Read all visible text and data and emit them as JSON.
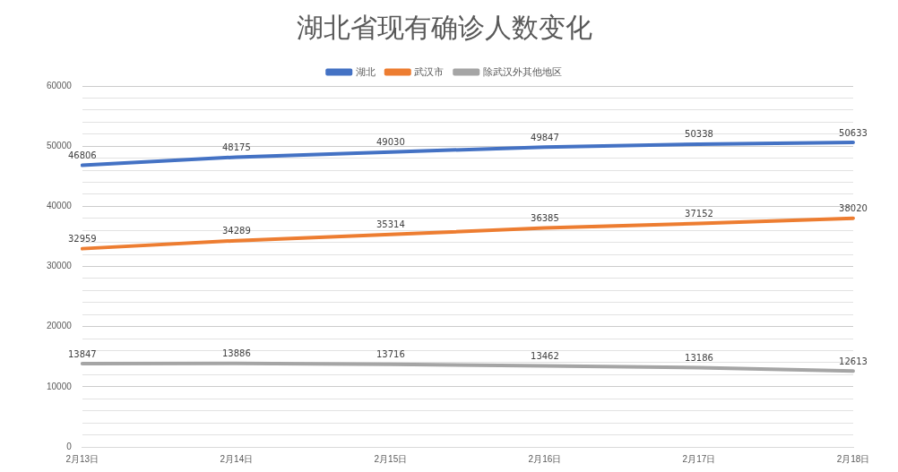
{
  "chart_data": {
    "type": "line",
    "title": "湖北省现有确诊人数变化",
    "categories": [
      "2月13日",
      "2月14日",
      "2月15日",
      "2月16日",
      "2月17日",
      "2月18日"
    ],
    "series": [
      {
        "name": "湖北",
        "color": "#4472c4",
        "values": [
          46806,
          48175,
          49030,
          49847,
          50338,
          50633
        ]
      },
      {
        "name": "武汉市",
        "color": "#ed7d31",
        "values": [
          32959,
          34289,
          35314,
          36385,
          37152,
          38020
        ]
      },
      {
        "name": "除武汉外其他地区",
        "color": "#a5a5a5",
        "values": [
          13847,
          13886,
          13716,
          13462,
          13186,
          12613
        ]
      }
    ],
    "ylim": [
      0,
      60000
    ],
    "yticks": [
      0,
      {
        "value": 2000,
        "label": null
      },
      {
        "value": 4000,
        "label": null
      },
      {
        "value": 6000,
        "label": null
      },
      {
        "value": 8000,
        "label": null
      },
      10000,
      {
        "value": 12000,
        "label": null
      },
      {
        "value": 14000,
        "label": null
      },
      {
        "value": 16000,
        "label": null
      },
      {
        "value": 18000,
        "label": null
      },
      20000,
      {
        "value": 22000,
        "label": null
      },
      {
        "value": 24000,
        "label": null
      },
      {
        "value": 26000,
        "label": null
      },
      {
        "value": 28000,
        "label": null
      },
      30000,
      {
        "value": 32000,
        "label": null
      },
      {
        "value": 34000,
        "label": null
      },
      {
        "value": 36000,
        "label": null
      },
      {
        "value": 38000,
        "label": null
      },
      40000,
      {
        "value": 42000,
        "label": null
      },
      {
        "value": 44000,
        "label": null
      },
      {
        "value": 46000,
        "label": null
      },
      {
        "value": 48000,
        "label": null
      },
      50000,
      {
        "value": 52000,
        "label": null
      },
      {
        "value": 54000,
        "label": null
      },
      {
        "value": 56000,
        "label": null
      },
      {
        "value": 58000,
        "label": null
      },
      60000
    ],
    "grid": "y",
    "legend": "top",
    "marker": "none",
    "line_style": "solid",
    "data_labels": true
  }
}
